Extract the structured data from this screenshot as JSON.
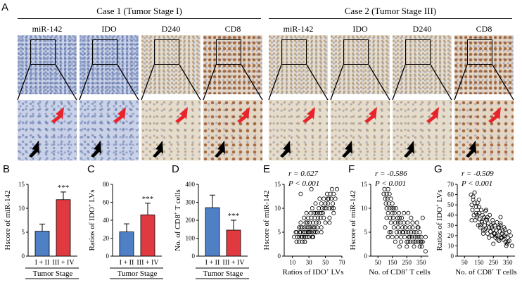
{
  "panel_a": {
    "label": "A",
    "case1_title": "Case 1 (Tumor Stage I)",
    "case2_title": "Case 2 (Tumor Stage III)",
    "columns": [
      "miR-142",
      "IDO",
      "D240",
      "CD8"
    ]
  },
  "panel_labels": {
    "b": "B",
    "c": "C",
    "d": "D",
    "e": "E",
    "f": "F",
    "g": "G"
  },
  "colors": {
    "blue_bar": "#4f80c6",
    "red_bar": "#e0393f",
    "arrow_red": "#e8232a",
    "arrow_black": "#000000"
  },
  "chart_data": [
    {
      "type": "bar",
      "ylabel": "Hscore of miR-142",
      "categories": [
        "I + II",
        "III + IV"
      ],
      "values": [
        5.2,
        11.8
      ],
      "errors": [
        1.5,
        1.6
      ],
      "ylim": [
        0,
        15
      ],
      "yticks": [
        0,
        5,
        10,
        15
      ],
      "xlabel": "Tumor Stage",
      "annotation": "***"
    },
    {
      "type": "bar",
      "ylabel": "Ratios of IDO+ LVs",
      "categories": [
        "I + II",
        "III + IV"
      ],
      "values": [
        27,
        46
      ],
      "errors": [
        9,
        13
      ],
      "ylim": [
        0,
        80
      ],
      "yticks": [
        0,
        20,
        40,
        60,
        80
      ],
      "xlabel": "Tumor Stage",
      "annotation": "***"
    },
    {
      "type": "bar",
      "ylabel": "No. of CD8+ T cells",
      "categories": [
        "I + II",
        "III + IV"
      ],
      "values": [
        270,
        145
      ],
      "errors": [
        70,
        55
      ],
      "ylim": [
        0,
        400
      ],
      "yticks": [
        0,
        100,
        200,
        300,
        400
      ],
      "xlabel": "Tumor Stage",
      "annotation": "***"
    },
    {
      "type": "scatter",
      "r": "r = 0.627",
      "p": "P < 0.001",
      "xlabel": "Ratios of IDO+ LVs",
      "ylabel": "Hscore of miR-142",
      "xlim": [
        0,
        70
      ],
      "ylim": [
        0,
        15
      ],
      "xticks": [
        10,
        30,
        50,
        70
      ],
      "yticks": [
        0,
        5,
        10,
        15
      ],
      "x": [
        12,
        14,
        15,
        16,
        18,
        18,
        19,
        20,
        20,
        21,
        22,
        22,
        23,
        24,
        24,
        25,
        25,
        26,
        26,
        27,
        27,
        28,
        28,
        29,
        29,
        30,
        30,
        31,
        31,
        32,
        32,
        33,
        33,
        34,
        34,
        35,
        35,
        36,
        36,
        37,
        37,
        38,
        38,
        39,
        40,
        40,
        41,
        42,
        42,
        43,
        44,
        45,
        45,
        46,
        47,
        48,
        49,
        50,
        51,
        52,
        53,
        54,
        55,
        56,
        57,
        58,
        59,
        60,
        62,
        64,
        18,
        22,
        25,
        30,
        35,
        40,
        45,
        50,
        55,
        60,
        20,
        28,
        33,
        38,
        43,
        48,
        53,
        58,
        25,
        35,
        45,
        55,
        15,
        20,
        60
      ],
      "y": [
        4,
        5,
        3,
        4,
        6,
        4,
        5,
        5,
        7,
        4,
        6,
        3,
        5,
        4,
        8,
        5,
        6,
        4,
        7,
        5,
        9,
        4,
        6,
        5,
        8,
        6,
        4,
        7,
        5,
        9,
        6,
        5,
        8,
        4,
        10,
        6,
        7,
        5,
        9,
        6,
        8,
        5,
        11,
        7,
        6,
        9,
        8,
        7,
        10,
        9,
        8,
        11,
        9,
        10,
        9,
        12,
        10,
        11,
        10,
        13,
        11,
        12,
        10,
        13,
        12,
        14,
        11,
        13,
        12,
        14,
        3,
        4,
        3,
        5,
        4,
        5,
        6,
        7,
        8,
        10,
        13,
        7,
        14,
        9,
        12,
        8,
        12,
        10,
        3,
        4,
        5,
        7,
        5,
        6,
        9
      ]
    },
    {
      "type": "scatter",
      "r": "r = -0.586",
      "p": "P < 0.001",
      "xlabel": "No. of CD8+ T cells",
      "ylabel": "Hscore of miR-142",
      "xlim": [
        0,
        400
      ],
      "ylim": [
        0,
        15
      ],
      "xticks": [
        50,
        150,
        250,
        350
      ],
      "yticks": [
        0,
        5,
        10,
        15
      ],
      "x": [
        90,
        95,
        100,
        105,
        110,
        110,
        115,
        120,
        120,
        125,
        130,
        130,
        135,
        140,
        140,
        145,
        150,
        150,
        155,
        160,
        165,
        170,
        175,
        180,
        185,
        190,
        195,
        200,
        205,
        210,
        215,
        220,
        225,
        230,
        235,
        240,
        245,
        250,
        255,
        260,
        265,
        270,
        275,
        280,
        285,
        290,
        295,
        300,
        305,
        310,
        315,
        320,
        325,
        330,
        335,
        340,
        345,
        350,
        355,
        360,
        100,
        120,
        140,
        160,
        180,
        200,
        220,
        240,
        260,
        280,
        300,
        320,
        340,
        360,
        130,
        150,
        170,
        190,
        210,
        230,
        250,
        270,
        290,
        310,
        330,
        350,
        380,
        380,
        110,
        200,
        260
      ],
      "y": [
        13,
        14,
        12,
        11,
        13,
        10,
        12,
        14,
        9,
        11,
        10,
        13,
        8,
        12,
        7,
        10,
        9,
        11,
        8,
        6,
        9,
        7,
        10,
        5,
        8,
        6,
        9,
        5,
        7,
        4,
        8,
        6,
        5,
        7,
        4,
        6,
        5,
        3,
        7,
        5,
        4,
        6,
        3,
        5,
        4,
        6,
        3,
        5,
        4,
        3,
        5,
        4,
        6,
        3,
        4,
        5,
        3,
        4,
        2,
        3,
        6,
        4,
        5,
        10,
        4,
        8,
        5,
        6,
        3,
        8,
        2,
        7,
        2,
        8,
        5,
        4,
        3,
        7,
        3,
        9,
        2,
        4,
        7,
        3,
        6,
        3,
        4,
        1,
        8,
        2,
        9
      ]
    },
    {
      "type": "scatter",
      "r": "r = -0.509",
      "p": "P < 0.001",
      "xlabel": "No. of CD8+ T cells",
      "ylabel": "Ratios of IDO+ LVs",
      "xlim": [
        0,
        400
      ],
      "ylim": [
        0,
        70
      ],
      "xticks": [
        50,
        150,
        250,
        350
      ],
      "yticks": [
        0,
        10,
        20,
        30,
        40,
        50,
        60,
        70
      ],
      "x": [
        95,
        100,
        105,
        110,
        115,
        120,
        125,
        130,
        135,
        140,
        145,
        150,
        155,
        160,
        165,
        170,
        175,
        180,
        185,
        190,
        195,
        200,
        205,
        210,
        215,
        220,
        225,
        230,
        235,
        240,
        245,
        250,
        255,
        260,
        265,
        270,
        275,
        280,
        285,
        290,
        295,
        300,
        305,
        310,
        315,
        320,
        325,
        330,
        335,
        340,
        345,
        350,
        360,
        370,
        380,
        110,
        130,
        150,
        170,
        190,
        210,
        230,
        250,
        270,
        290,
        310,
        330,
        350,
        120,
        140,
        160,
        180,
        200,
        220,
        240,
        260,
        280,
        300,
        320,
        340,
        360,
        100,
        200,
        300,
        150,
        250
      ],
      "y": [
        60,
        50,
        45,
        55,
        40,
        62,
        35,
        48,
        38,
        52,
        30,
        42,
        36,
        28,
        45,
        33,
        40,
        25,
        38,
        30,
        44,
        27,
        35,
        22,
        32,
        28,
        40,
        24,
        30,
        20,
        35,
        26,
        22,
        30,
        18,
        25,
        33,
        20,
        28,
        15,
        24,
        30,
        18,
        22,
        25,
        16,
        28,
        20,
        14,
        22,
        12,
        18,
        15,
        20,
        10,
        58,
        42,
        48,
        34,
        26,
        38,
        24,
        32,
        20,
        28,
        18,
        26,
        14,
        52,
        40,
        30,
        22,
        36,
        18,
        28,
        22,
        16,
        32,
        20,
        10,
        24,
        35,
        45,
        38,
        55,
        12
      ]
    }
  ],
  "superscripts": {
    "plus": "+"
  }
}
